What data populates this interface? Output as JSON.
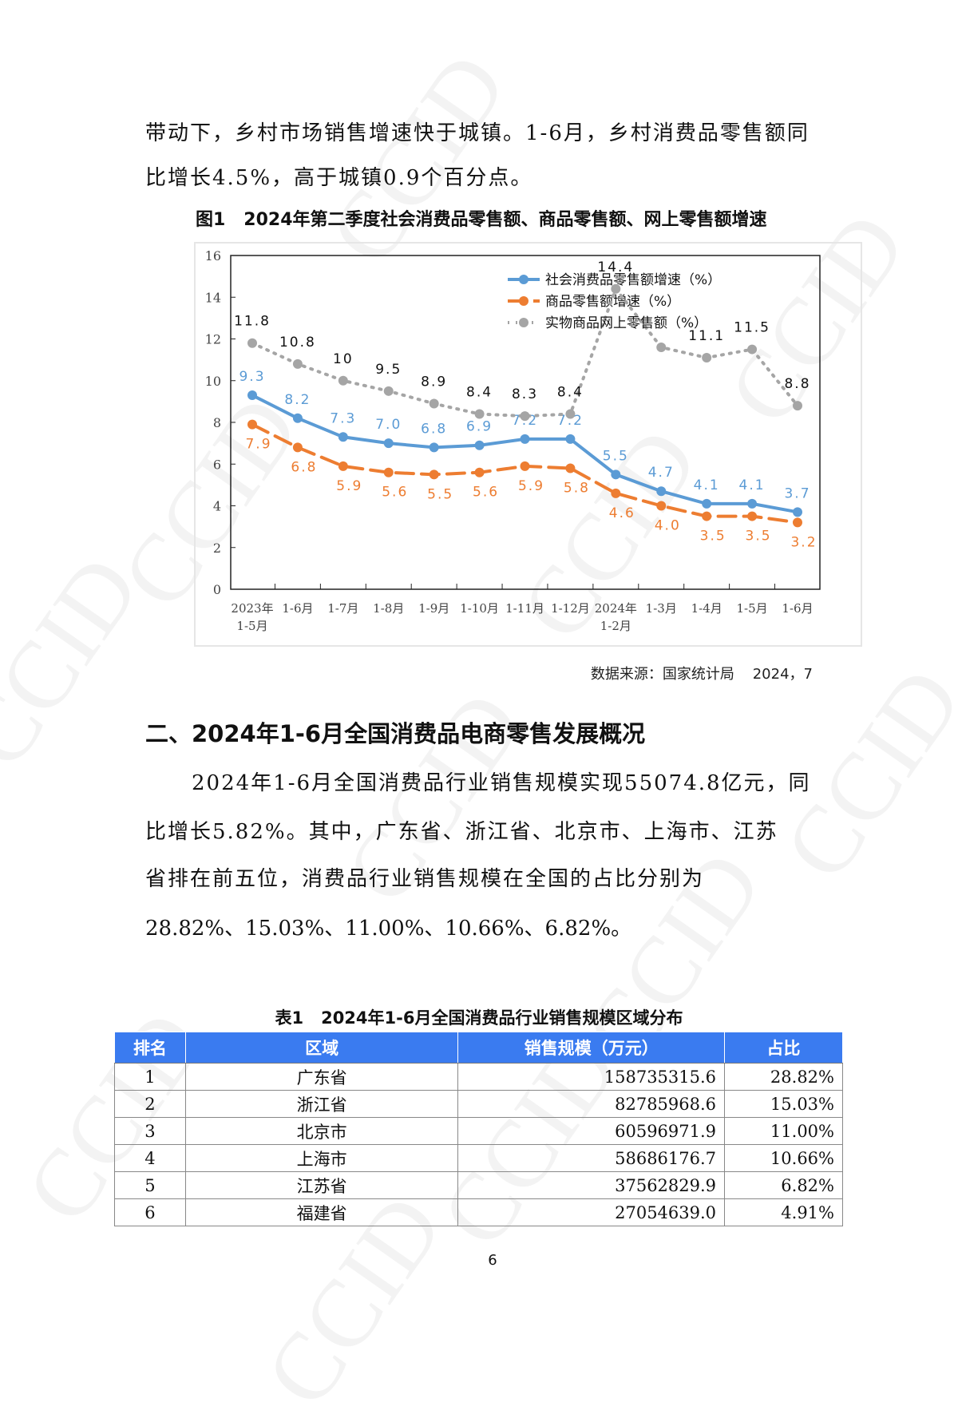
{
  "intro": {
    "lines": [
      "带动下，乡村市场销售增速快于城镇。1-6月，乡村消费品零售额同",
      "比增长4.5%，高于城镇0.9个百分点。"
    ]
  },
  "figure": {
    "caption": "图1   2024年第二季度社会消费品零售额、商品零售额、网上零售额增速",
    "source": "数据来源：国家统计局    2024，7"
  },
  "chart_data": {
    "type": "line",
    "title": "2024年第二季度社会消费品零售额、商品零售额、网上零售额增速",
    "categories": [
      "2023年 1-5月",
      "1-6月",
      "1-7月",
      "1-8月",
      "1-9月",
      "1-10月",
      "1-11月",
      "1-12月",
      "2024年 1-2月",
      "1-3月",
      "1-4月",
      "1-5月",
      "1-6月"
    ],
    "ylim": [
      0,
      16
    ],
    "yticks": [
      "0",
      "2",
      "4",
      "6",
      "8",
      "10",
      "12",
      "14",
      "16"
    ],
    "legend_position": "top-right",
    "grid": false,
    "series": [
      {
        "name": "社会消费品零售额增速（%）",
        "color": "#5b9bd5",
        "style": "solid",
        "values": [
          9.3,
          8.2,
          7.3,
          7.0,
          6.8,
          6.9,
          7.2,
          7.2,
          5.5,
          4.7,
          4.1,
          4.1,
          3.7
        ],
        "labels": [
          "9.3",
          "8.2",
          "7.3",
          "7.0",
          "6.8",
          "6.9",
          "7.2",
          "7.2",
          "5.5",
          "4.7",
          "4.1",
          "4.1",
          "3.7"
        ]
      },
      {
        "name": "商品零售额增速（%）",
        "color": "#ed7d31",
        "style": "dashed",
        "values": [
          7.9,
          6.8,
          5.9,
          5.6,
          5.5,
          5.6,
          5.9,
          5.8,
          4.6,
          4.0,
          3.5,
          3.5,
          3.2
        ],
        "labels": [
          "7.9",
          "6.8",
          "5.9",
          "5.6",
          "5.5",
          "5.6",
          "5.9",
          "5.8",
          "4.6",
          "4.0",
          "3.5",
          "3.5",
          "3.2"
        ]
      },
      {
        "name": "实物商品网上零售额（%）",
        "color": "#a5a5a5",
        "style": "dotted",
        "values": [
          11.8,
          10.8,
          10,
          9.5,
          8.9,
          8.4,
          8.3,
          8.4,
          14.4,
          11.6,
          11.1,
          11.5,
          8.8
        ],
        "labels": [
          "11.8",
          "10.8",
          "10",
          "9.5",
          "8.9",
          "8.4",
          "8.3",
          "8.4",
          "14.4",
          "",
          "11.1",
          "11.5",
          "8.8"
        ]
      }
    ]
  },
  "section": {
    "heading": "二、2024年1-6月全国消费品电商零售发展概况",
    "lines": [
      "2024年1-6月全国消费品行业销售规模实现55074.8亿元，同",
      "比增长5.82%。其中，广东省、浙江省、北京市、上海市、江苏",
      "省排在前五位，消费品行业销售规模在全国的占比分别为",
      "28.82%、15.03%、11.00%、10.66%、6.82%。"
    ]
  },
  "table": {
    "title": "表1   2024年1-6月全国消费品行业销售规模区域分布",
    "headers": [
      "排名",
      "区域",
      "销售规模（万元）",
      "占比"
    ],
    "rows": [
      [
        "1",
        "广东省",
        "158735315.6",
        "28.82%"
      ],
      [
        "2",
        "浙江省",
        "82785968.6",
        "15.03%"
      ],
      [
        "3",
        "北京市",
        "60596971.9",
        "11.00%"
      ],
      [
        "4",
        "上海市",
        "58686176.7",
        "10.66%"
      ],
      [
        "5",
        "江苏省",
        "37562829.9",
        "6.82%"
      ],
      [
        "6",
        "福建省",
        "27054639.0",
        "4.91%"
      ]
    ]
  },
  "page_number": "6",
  "watermark": "CCID"
}
